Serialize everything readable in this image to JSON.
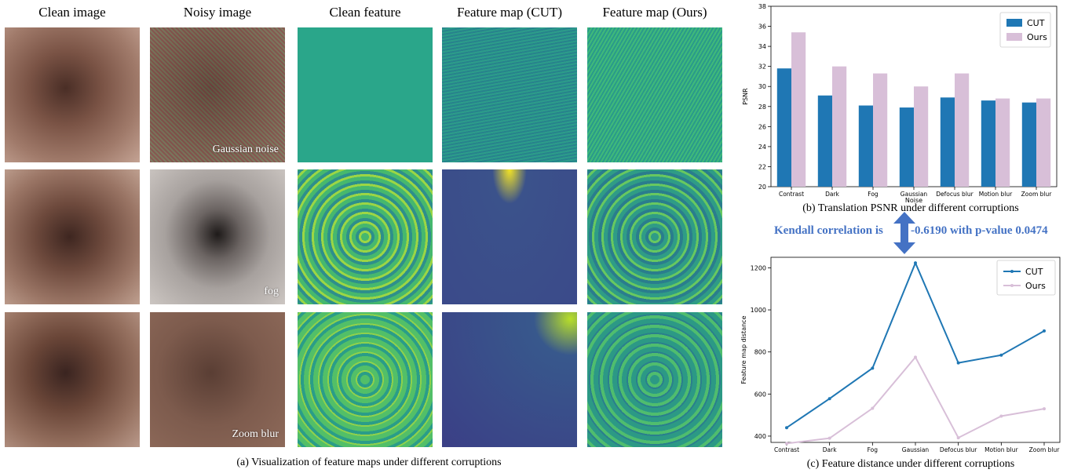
{
  "headers": [
    "Clean image",
    "Noisy image",
    "Clean feature",
    "Feature map (CUT)",
    "Feature map (Ours)"
  ],
  "noise_labels": [
    "Gaussian noise",
    "fog",
    "Zoom blur"
  ],
  "caption_a": "(a) Visualization of feature maps under different corruptions",
  "caption_b": "(b) Translation PSNR under different corruptions",
  "caption_c": "(c) Feature distance under different corruptions",
  "kendall": {
    "left": "Kendall correlation is",
    "right": "-0.6190 with p-value 0.0474"
  },
  "colors": {
    "cut": "#1f77b4",
    "ours": "#d8bfd8",
    "arrow": "#4472c4",
    "viridis_mid": "#2ab07f"
  },
  "chart_data": [
    {
      "type": "bar",
      "categories": [
        "Contrast",
        "Dark",
        "Fog",
        "Gaussian",
        "Defocus blur",
        "Motion blur",
        "Zoom blur"
      ],
      "series": [
        {
          "name": "CUT",
          "values": [
            31.8,
            29.1,
            28.1,
            27.9,
            28.9,
            28.6,
            28.4
          ]
        },
        {
          "name": "Ours",
          "values": [
            35.4,
            32.0,
            31.3,
            30.0,
            31.3,
            28.8,
            28.8
          ]
        }
      ],
      "xlabel": "Noise",
      "ylabel": "PSNR",
      "ylim": [
        20,
        38
      ],
      "yticks": [
        20,
        22,
        24,
        26,
        28,
        30,
        32,
        34,
        36,
        38
      ],
      "legend": "top-right",
      "grid": false
    },
    {
      "type": "line",
      "categories": [
        "Contrast",
        "Dark",
        "Fog",
        "Gaussian",
        "Defocus blur",
        "Motion blur",
        "Zoom blur"
      ],
      "series": [
        {
          "name": "CUT",
          "values": [
            440,
            578,
            723,
            1223,
            748,
            785,
            900
          ]
        },
        {
          "name": "Ours",
          "values": [
            365,
            390,
            532,
            775,
            392,
            495,
            530
          ]
        }
      ],
      "ylabel": "Feature map distance",
      "ylim": [
        370,
        1250
      ],
      "yticks": [
        400,
        600,
        800,
        1000,
        1200
      ],
      "legend": "top-right",
      "grid": false
    }
  ]
}
